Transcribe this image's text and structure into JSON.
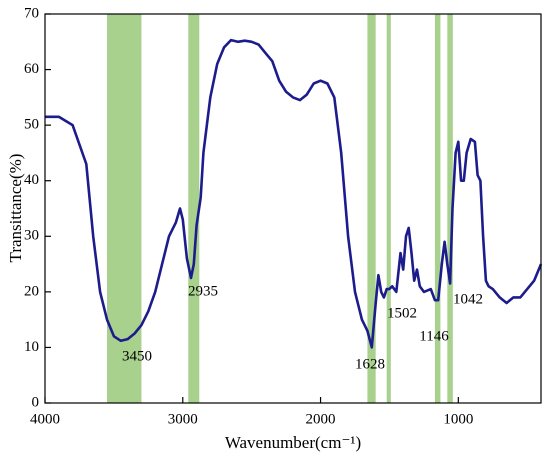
{
  "chart_data": {
    "type": "line",
    "xlabel": "Wavenumber(cm⁻¹)",
    "ylabel": "Transittance(%)",
    "xlim": [
      4000,
      400
    ],
    "xticks": [
      4000,
      3000,
      2000,
      1000
    ],
    "ylim": [
      0,
      70
    ],
    "yticks": [
      0,
      10,
      20,
      30,
      40,
      50,
      60,
      70
    ],
    "band_color": "#a9d18e",
    "bands": [
      {
        "from": 3550,
        "to": 3300,
        "label": "3450"
      },
      {
        "from": 2960,
        "to": 2880,
        "label": "2935"
      },
      {
        "from": 1660,
        "to": 1600,
        "label": "1628"
      },
      {
        "from": 1520,
        "to": 1490,
        "label": "1502"
      },
      {
        "from": 1170,
        "to": 1130,
        "label": "1146"
      },
      {
        "from": 1080,
        "to": 1040,
        "label": "1042"
      }
    ],
    "series": [
      {
        "color": "#1c1c8c",
        "x": [
          4000,
          3900,
          3800,
          3700,
          3650,
          3600,
          3550,
          3500,
          3450,
          3400,
          3350,
          3300,
          3250,
          3200,
          3150,
          3100,
          3050,
          3020,
          3000,
          2970,
          2940,
          2920,
          2900,
          2870,
          2850,
          2800,
          2750,
          2700,
          2650,
          2600,
          2550,
          2500,
          2450,
          2400,
          2350,
          2300,
          2250,
          2200,
          2150,
          2100,
          2050,
          2000,
          1950,
          1900,
          1850,
          1800,
          1750,
          1700,
          1660,
          1628,
          1600,
          1580,
          1560,
          1540,
          1520,
          1502,
          1480,
          1450,
          1420,
          1400,
          1380,
          1360,
          1340,
          1320,
          1300,
          1280,
          1250,
          1200,
          1170,
          1146,
          1120,
          1100,
          1080,
          1060,
          1042,
          1020,
          1000,
          980,
          960,
          940,
          910,
          880,
          860,
          840,
          820,
          800,
          780,
          750,
          700,
          650,
          600,
          550,
          500,
          450,
          400
        ],
        "values": [
          51.5,
          51.5,
          50,
          43,
          30,
          20,
          15,
          12,
          11.2,
          11.5,
          12.5,
          14,
          16.5,
          20,
          25,
          30,
          32.5,
          35,
          33,
          26,
          22.5,
          25,
          32,
          37,
          45,
          55,
          61,
          64,
          65.3,
          65,
          65.2,
          65,
          64.5,
          63,
          61.5,
          58,
          56,
          55,
          54.5,
          55.5,
          57.5,
          58,
          57.5,
          55,
          45,
          30,
          20,
          15,
          13,
          10,
          18,
          23,
          20,
          19,
          20.5,
          20.5,
          21,
          20,
          27,
          24,
          30,
          31.5,
          27,
          22,
          24,
          21,
          20,
          20.5,
          18.5,
          18.5,
          25,
          29,
          25,
          21.5,
          35,
          45,
          47,
          40,
          40,
          45,
          47.5,
          47,
          41,
          40,
          30,
          22,
          21,
          20.5,
          19,
          18,
          19,
          19,
          20.5,
          22,
          25
        ]
      }
    ]
  }
}
